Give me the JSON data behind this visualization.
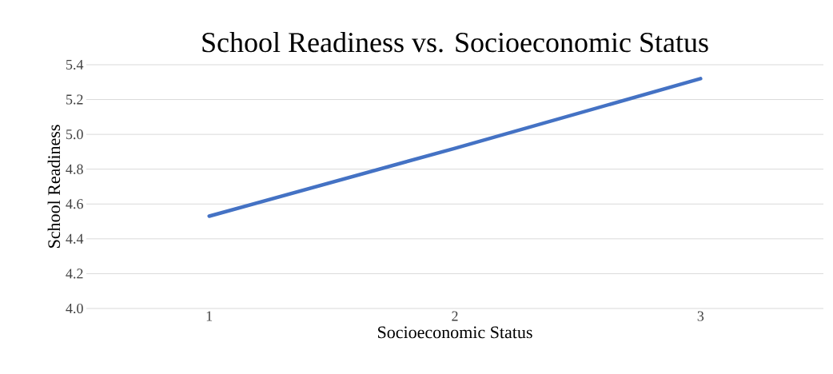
{
  "chart_data": {
    "type": "line",
    "title": "School Readiness vs. Socioeconomic Status",
    "xlabel": "Socioeconomic Status",
    "ylabel": "School Readiness",
    "categories": [
      "1",
      "2",
      "3"
    ],
    "series": [
      {
        "color": "#4472c4",
        "values": [
          4.53,
          4.92,
          5.32
        ]
      }
    ],
    "ylim": [
      4.0,
      5.4
    ],
    "yticks": [
      {
        "value": 4.0,
        "label": "4.0"
      },
      4.2,
      4.4,
      4.6,
      4.8,
      {
        "value": 5.0,
        "label": "5.0"
      },
      5.2,
      5.4
    ],
    "grid": "y"
  }
}
